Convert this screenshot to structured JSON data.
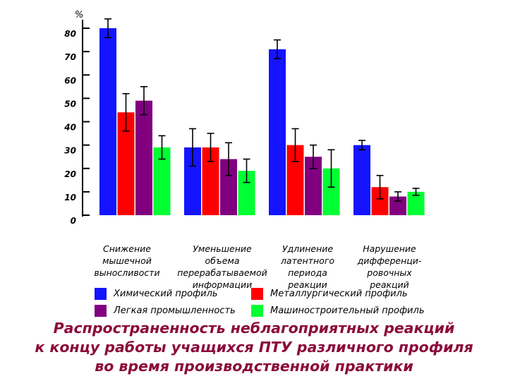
{
  "chart_data": {
    "type": "bar",
    "ylabel": "%",
    "ylim": [
      0,
      80
    ],
    "yticks": [
      0,
      10,
      20,
      30,
      40,
      50,
      60,
      70,
      80
    ],
    "categories": [
      [
        "Снижение",
        "мышечной",
        "выносливости"
      ],
      [
        "Уменьшение",
        "объема",
        "перерабатываемой",
        "информации"
      ],
      [
        "Удлинение",
        "латентного",
        "периода",
        "реакции"
      ],
      [
        "Нарушение",
        "дифференци-",
        "ровочных",
        "реакций"
      ]
    ],
    "series": [
      {
        "name": "Химический профиль",
        "color": "#1414ff",
        "values": [
          80,
          29,
          71,
          30
        ],
        "errors": [
          4,
          8,
          4,
          2
        ]
      },
      {
        "name": "Металлургический профиль",
        "color": "#ff0000",
        "values": [
          44,
          29,
          30,
          12
        ],
        "errors": [
          8,
          6,
          7,
          5
        ]
      },
      {
        "name": "Легкая промышленность",
        "color": "#800080",
        "values": [
          49,
          24,
          25,
          8
        ],
        "errors": [
          6,
          7,
          5,
          2
        ]
      },
      {
        "name": "Машиностроительный профиль",
        "color": "#00ff33",
        "values": [
          29,
          19,
          20,
          10
        ],
        "errors": [
          5,
          5,
          8,
          1.5
        ]
      }
    ]
  },
  "caption": [
    "Распространенность неблагоприятных реакций",
    "к концу работы учащихся ПТУ различного профиля",
    "во время производственной практики"
  ]
}
